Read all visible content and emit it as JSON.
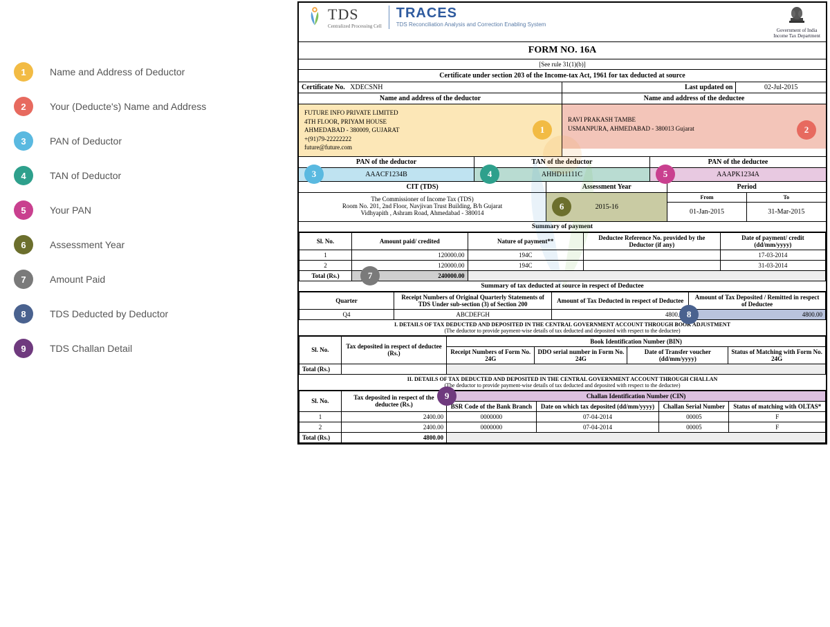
{
  "legend": [
    {
      "n": "1",
      "color": "#f2bb44",
      "text": "Name and Address of Deductor"
    },
    {
      "n": "2",
      "color": "#e76a5f",
      "text": "Your (Deducte's) Name and Address"
    },
    {
      "n": "3",
      "color": "#5ab9e0",
      "text": "PAN of Deductor"
    },
    {
      "n": "4",
      "color": "#2ea08c",
      "text": "TAN of Deductor"
    },
    {
      "n": "5",
      "color": "#c9408f",
      "text": "Your PAN"
    },
    {
      "n": "6",
      "color": "#6c6f2d",
      "text": "Assessment Year"
    },
    {
      "n": "7",
      "color": "#7a7a7a",
      "text": "Amount Paid"
    },
    {
      "n": "8",
      "color": "#4a628f",
      "text": "TDS Deducted by Deductor"
    },
    {
      "n": "9",
      "color": "#6f3a7e",
      "text": "TDS Challan Detail"
    }
  ],
  "header": {
    "tds_title": "TDS",
    "tds_sub": "Centralized Processing Cell",
    "traces_title": "TRACES",
    "traces_sub": "TDS Reconciliation Analysis and Correction Enabling System",
    "govt1": "Government of India",
    "govt2": "Income Tax Department"
  },
  "form": {
    "title": "FORM NO. 16A",
    "rule": "[See rule 31(1)(b)]",
    "cert_line": "Certificate under section 203 of the Income-tax Act, 1961 for tax deducted at source",
    "cert_no_label": "Certificate No.",
    "cert_no": "XDECSNH",
    "updated_label": "Last updated on",
    "updated": "02-Jul-2015",
    "deductor_hdr": "Name and address of the deductor",
    "deductee_hdr": "Name and address of the deductee",
    "deductor_addr": "FUTURE INFO PRIVATE LIMITED\n4TH FLOOR, PRIYAM HOUSE\nAHMEDABAD - 380009, GUJARAT\n+(91)79-22222222\nfuture@future.com",
    "deductee_addr": "RAVI PRAKASH TAMBE\nUSMANPURA, AHMEDABAD - 380013 Gujarat",
    "pan_deductor_hdr": "PAN of the deductor",
    "tan_deductor_hdr": "TAN of the deductor",
    "pan_deductee_hdr": "PAN of the deductee",
    "pan_deductor": "AAACF1234B",
    "tan_deductor": "AHHD11111C",
    "pan_deductee": "AAAPK1234A",
    "cit_hdr": "CIT (TDS)",
    "ay_hdr": "Assessment Year",
    "period_hdr": "Period",
    "cit_addr": "The Commissioner of Income Tax (TDS)\nRoom No. 201, 2nd Floor, Navjivan Trust Building, B/h Gujarat\nVidhyapith , Ashram Road, Ahmedabad - 380014",
    "ay": "2015-16",
    "from_hdr": "From",
    "to_hdr": "To",
    "from": "01-Jan-2015",
    "to": "31-Mar-2015"
  },
  "summary_payment": {
    "title": "Summary of payment",
    "cols": [
      "Sl. No.",
      "Amount paid/ credited",
      "Nature of payment**",
      "Deductee Reference No. provided by the Deductor (if any)",
      "Date of payment/ credit (dd/mm/yyyy)"
    ],
    "rows": [
      [
        "1",
        "120000.00",
        "194C",
        "",
        "17-03-2014"
      ],
      [
        "2",
        "120000.00",
        "194C",
        "",
        "31-03-2014"
      ]
    ],
    "total_label": "Total (Rs.)",
    "total": "240000.00"
  },
  "summary_tds": {
    "title": "Summary of tax deducted at source in respect of Deductee",
    "cols": [
      "Quarter",
      "Receipt Numbers of Original Quarterly Statements of TDS Under sub-section (3) of Section 200",
      "Amount of Tax Deducted in respect of Deductee",
      "Amount of Tax Deposited / Remitted in respect of Deductee"
    ],
    "rows": [
      [
        "Q4",
        "ABCDEFGH",
        "4800.00",
        "4800.00"
      ]
    ]
  },
  "section1": {
    "title": "I. DETAILS OF TAX DEDUCTED AND DEPOSITED IN THE CENTRAL GOVERNMENT ACCOUNT THROUGH BOOK ADJUSTMENT",
    "sub": "(The deductor to provide payment-wise details of tax deducted and deposited with respect to the deductee)",
    "bin_hdr": "Book Identification Number (BIN)",
    "cols": [
      "Sl. No.",
      "Tax deposited in respect of deductee (Rs.)",
      "Receipt Numbers of Form No. 24G",
      "DDO serial number in Form No. 24G",
      "Date of Transfer voucher (dd/mm/yyyy)",
      "Status of Matching with Form No. 24G"
    ],
    "total_label": "Total (Rs.)"
  },
  "section2": {
    "title": "II. DETAILS OF TAX DEDUCTED AND DEPOSITED IN THE CENTRAL GOVERNMENT ACCOUNT THROUGH CHALLAN",
    "sub": "(The deductor to provide payment-wise details of tax deducted and deposited with respect to the deductee)",
    "cin_hdr": "Challan Identification Number (CIN)",
    "cols": [
      "Sl. No.",
      "Tax deposited in respect of the deductee (Rs.)",
      "BSR Code of the Bank Branch",
      "Date on which tax deposited (dd/mm/yyyy)",
      "Challan Serial Number",
      "Status of matching with OLTAS*"
    ],
    "rows": [
      [
        "1",
        "2400.00",
        "0000000",
        "07-04-2014",
        "00005",
        "F"
      ],
      [
        "2",
        "2400.00",
        "0000000",
        "07-04-2014",
        "00005",
        "F"
      ]
    ],
    "total_label": "Total (Rs.)",
    "total": "4800.00"
  },
  "colors": {
    "hl1": "#fce7b7",
    "hl2": "#f3c5b9",
    "hl3": "#bfe3f1",
    "hl4": "#b9dcd2",
    "hl5": "#e8c9e1",
    "hl6": "#c9cba3",
    "hl7": "#cfcfcf",
    "hl8": "#b9c3dd",
    "hl9": "#dcc0e0"
  }
}
